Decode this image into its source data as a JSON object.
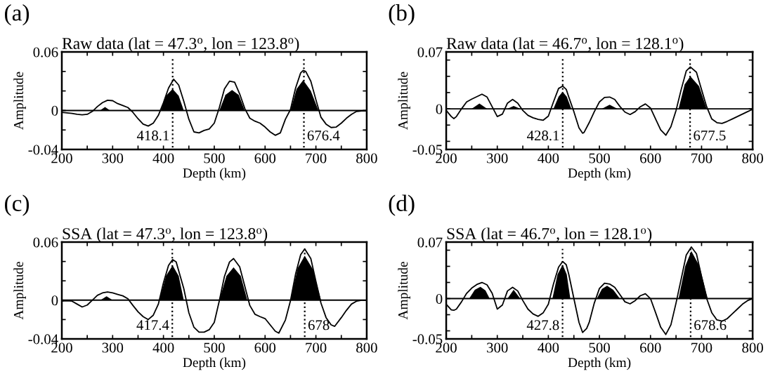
{
  "chart_data": [
    {
      "type": "line",
      "title": "Raw data (lat = 47.3$^{o}$, lon = 123.8$^{o}$)",
      "xlabel": "Depth (km)",
      "ylabel": "Amplitude",
      "annotations": [
        "(a)"
      ],
      "xlim": [
        200,
        800
      ],
      "ylim": [
        -0.04,
        0.06
      ],
      "xticks": [
        200,
        {
          "value": 250,
          "label": null
        },
        300,
        {
          "value": 350,
          "label": null
        },
        400,
        {
          "value": 450,
          "label": null
        },
        500,
        {
          "value": 550,
          "label": null
        },
        600,
        {
          "value": 650,
          "label": null
        },
        700,
        {
          "value": 750,
          "label": null
        },
        800
      ],
      "yticks": [
        {
          "value": -0.04,
          "label": "-0.04"
        },
        {
          "value": -0.02,
          "label": null
        },
        0,
        {
          "value": 0.02,
          "label": null
        },
        {
          "value": 0.04,
          "label": null
        },
        0.06
      ],
      "series": [
        {
          "type": "line",
          "color": "#000000",
          "x": [
            200,
            210,
            220,
            230,
            240,
            250,
            260,
            270,
            280,
            290,
            300,
            310,
            320,
            330,
            340,
            350,
            360,
            370,
            380,
            390,
            400,
            410,
            420,
            430,
            440,
            450,
            460,
            470,
            480,
            490,
            500,
            510,
            520,
            530,
            540,
            550,
            560,
            570,
            580,
            590,
            600,
            610,
            620,
            630,
            640,
            650,
            660,
            670,
            675,
            680,
            690,
            700,
            710,
            720,
            730,
            740,
            750,
            760,
            770,
            780,
            790,
            800
          ],
          "values": [
            -0.002,
            -0.0025,
            -0.003,
            -0.004,
            -0.0045,
            -0.004,
            -0.001,
            0.004,
            0.008,
            0.0105,
            0.01,
            0.007,
            0.005,
            0.003,
            -0.002,
            -0.0085,
            -0.014,
            -0.016,
            -0.013,
            -0.005,
            0.008,
            0.023,
            0.032,
            0.026,
            0.0095,
            -0.009,
            -0.022,
            -0.023,
            -0.0205,
            -0.019,
            -0.013,
            0.003,
            0.022,
            0.03,
            0.029,
            0.017,
            0.002,
            -0.008,
            -0.011,
            -0.013,
            -0.017,
            -0.022,
            -0.0255,
            -0.023,
            -0.009,
            0.001,
            0.023,
            0.0385,
            0.041,
            0.04,
            0.03,
            0.011,
            -0.007,
            -0.014,
            -0.0175,
            -0.017,
            -0.013,
            -0.008,
            -0.004,
            -0.001,
            -0.0005,
            -0.0005
          ]
        },
        {
          "type": "area",
          "color": "#000000",
          "x": [
            275,
            285,
            295,
            350,
            395,
            405,
            418,
            430,
            440,
            480,
            510,
            522,
            535,
            548,
            560,
            600,
            650,
            662,
            675,
            690,
            705
          ],
          "values": [
            0,
            0.0035,
            0,
            null,
            0,
            0.015,
            0.022,
            0.015,
            0,
            null,
            0,
            0.016,
            0.021,
            0.016,
            0,
            null,
            0,
            0.022,
            0.031,
            0.02,
            0
          ]
        }
      ],
      "ref_lines": [
        {
          "axis": "y",
          "value": 0,
          "color": "#000000",
          "line_style": "solid"
        },
        {
          "axis": "x",
          "value": 418.1,
          "label": "418.1",
          "color": "#000000",
          "line_style": "dotted"
        },
        {
          "axis": "x",
          "value": 676.4,
          "label": "676.4",
          "color": "#000000",
          "line_style": "dotted"
        }
      ]
    },
    {
      "type": "line",
      "title": "Raw data (lat = 46.7$^{o}$, lon = 128.1$^{o}$)",
      "xlabel": "Depth (km)",
      "ylabel": "Amplitude",
      "annotations": [
        "(b)"
      ],
      "xlim": [
        200,
        800
      ],
      "ylim": [
        -0.05,
        0.07
      ],
      "xticks": [
        200,
        {
          "value": 250,
          "label": null
        },
        300,
        {
          "value": 350,
          "label": null
        },
        400,
        {
          "value": 450,
          "label": null
        },
        500,
        {
          "value": 550,
          "label": null
        },
        600,
        {
          "value": 650,
          "label": null
        },
        700,
        {
          "value": 750,
          "label": null
        },
        800
      ],
      "yticks": [
        {
          "value": -0.05,
          "label": "-0.05"
        },
        {
          "value": -0.04,
          "label": null
        },
        {
          "value": -0.02,
          "label": null
        },
        0,
        {
          "value": 0.02,
          "label": null
        },
        {
          "value": 0.04,
          "label": null
        },
        {
          "value": 0.06,
          "label": null
        },
        0.07
      ],
      "series": [
        {
          "type": "line",
          "color": "#000000",
          "x": [
            200,
            210,
            215,
            220,
            230,
            240,
            250,
            260,
            270,
            280,
            290,
            300,
            310,
            320,
            330,
            340,
            350,
            360,
            370,
            380,
            390,
            400,
            410,
            420,
            428,
            435,
            440,
            450,
            460,
            467,
            470,
            480,
            490,
            500,
            510,
            520,
            530,
            540,
            550,
            560,
            570,
            580,
            590,
            600,
            610,
            620,
            630,
            640,
            650,
            660,
            670,
            678,
            690,
            700,
            710,
            720,
            730,
            740,
            750,
            760,
            770,
            780,
            790,
            800
          ],
          "values": [
            -0.002,
            -0.0095,
            -0.012,
            -0.0095,
            0,
            0.0085,
            0.012,
            0.015,
            0.018,
            0.0145,
            0.0025,
            -0.0095,
            -0.0065,
            0.007,
            0.0115,
            0.007,
            -0.002,
            -0.008,
            -0.011,
            -0.013,
            -0.014,
            -0.009,
            0.0085,
            0.025,
            0.028,
            0.024,
            0.0145,
            -0.0035,
            -0.0235,
            -0.03,
            -0.029,
            -0.017,
            -0.0035,
            0.0085,
            0.014,
            0.0145,
            0.0115,
            0.003,
            -0.004,
            -0.007,
            -0.0035,
            0.0025,
            0.006,
            0.001,
            -0.0125,
            -0.026,
            -0.0325,
            -0.022,
            -0.002,
            0.0235,
            0.0465,
            0.0515,
            0.045,
            0.0235,
            0.0025,
            -0.0125,
            -0.017,
            -0.018,
            -0.0155,
            -0.0125,
            -0.0095,
            -0.0065,
            -0.0035,
            -0.0005
          ]
        },
        {
          "type": "area",
          "color": "#000000",
          "x": [
            250,
            265,
            280,
            300,
            320,
            332,
            345,
            380,
            410,
            420,
            428,
            436,
            445,
            480,
            505,
            520,
            535,
            600,
            655,
            667,
            678,
            695,
            710
          ],
          "values": [
            0,
            0.0065,
            0,
            null,
            0,
            0.0035,
            0,
            null,
            0,
            0.015,
            0.021,
            0.015,
            0,
            null,
            0,
            0.005,
            0,
            null,
            0,
            0.03,
            0.04,
            0.028,
            0
          ]
        }
      ],
      "ref_lines": [
        {
          "axis": "y",
          "value": 0,
          "color": "#000000",
          "line_style": "solid"
        },
        {
          "axis": "x",
          "value": 428.1,
          "label": "428.1",
          "color": "#000000",
          "line_style": "dotted"
        },
        {
          "axis": "x",
          "value": 677.5,
          "label": "677.5",
          "color": "#000000",
          "line_style": "dotted"
        }
      ]
    },
    {
      "type": "line",
      "title": "SSA (lat = 47.3$^{o}$, lon = 123.8$^{o}$)",
      "xlabel": "Depth (km)",
      "ylabel": "Amplitude",
      "annotations": [
        "(c)"
      ],
      "xlim": [
        200,
        800
      ],
      "ylim": [
        -0.04,
        0.06
      ],
      "xticks": [
        200,
        {
          "value": 250,
          "label": null
        },
        300,
        {
          "value": 350,
          "label": null
        },
        400,
        {
          "value": 450,
          "label": null
        },
        500,
        {
          "value": 550,
          "label": null
        },
        600,
        {
          "value": 650,
          "label": null
        },
        700,
        {
          "value": 750,
          "label": null
        },
        800
      ],
      "yticks": [
        {
          "value": -0.04,
          "label": "-0.04"
        },
        {
          "value": -0.02,
          "label": null
        },
        0,
        {
          "value": 0.02,
          "label": null
        },
        {
          "value": 0.04,
          "label": null
        },
        0.06
      ],
      "series": [
        {
          "type": "line",
          "color": "#000000",
          "x": [
            200,
            210,
            220,
            230,
            240,
            250,
            260,
            270,
            280,
            290,
            300,
            310,
            320,
            330,
            340,
            350,
            360,
            370,
            380,
            390,
            400,
            410,
            418,
            425,
            440,
            450,
            460,
            470,
            480,
            490,
            500,
            510,
            520,
            530,
            538,
            550,
            560,
            570,
            580,
            590,
            600,
            610,
            620,
            627,
            640,
            650,
            660,
            670,
            678,
            690,
            700,
            710,
            720,
            730,
            737,
            750,
            760,
            770,
            780,
            790,
            800
          ],
          "values": [
            -0.001,
            -0.0005,
            -0.001,
            -0.004,
            -0.007,
            -0.005,
            0,
            0.005,
            0.0075,
            0.0085,
            0.0075,
            0.006,
            0.0045,
            0.0015,
            -0.0055,
            -0.012,
            -0.017,
            -0.02,
            -0.0155,
            -0.004,
            0.018,
            0.036,
            0.042,
            0.0395,
            0.012,
            -0.013,
            -0.028,
            -0.033,
            -0.033,
            -0.0305,
            -0.023,
            -0.0005,
            0.0245,
            0.0395,
            0.043,
            0.0345,
            0.0145,
            -0.0055,
            -0.0145,
            -0.017,
            -0.019,
            -0.0255,
            -0.032,
            -0.034,
            -0.0205,
            -0.0005,
            0.027,
            0.047,
            0.053,
            0.043,
            0.0195,
            -0.003,
            -0.018,
            -0.0255,
            -0.027,
            -0.018,
            -0.0105,
            -0.004,
            -0.001,
            0,
            0
          ]
        },
        {
          "type": "area",
          "color": "#000000",
          "x": [
            276,
            288,
            300,
            350,
            392,
            405,
            418,
            430,
            440,
            480,
            510,
            524,
            538,
            552,
            565,
            600,
            650,
            664,
            678,
            694,
            710
          ],
          "values": [
            0,
            0.004,
            0,
            null,
            0,
            0.025,
            0.036,
            0.025,
            0,
            null,
            0,
            0.025,
            0.034,
            0.025,
            0,
            null,
            0,
            0.033,
            0.046,
            0.032,
            0
          ]
        }
      ],
      "ref_lines": [
        {
          "axis": "y",
          "value": 0,
          "color": "#000000",
          "line_style": "solid"
        },
        {
          "axis": "x",
          "value": 417.4,
          "label": "417.4",
          "color": "#000000",
          "line_style": "dotted"
        },
        {
          "axis": "x",
          "value": 678,
          "label": "678",
          "color": "#000000",
          "line_style": "dotted"
        }
      ]
    },
    {
      "type": "line",
      "title": "SSA (lat = 46.7$^{o}$, lon = 128.1$^{o}$)",
      "xlabel": "Depth (km)",
      "ylabel": "Amplitude",
      "annotations": [
        "(d)"
      ],
      "xlim": [
        200,
        800
      ],
      "ylim": [
        -0.05,
        0.07
      ],
      "xticks": [
        200,
        {
          "value": 250,
          "label": null
        },
        300,
        {
          "value": 350,
          "label": null
        },
        400,
        {
          "value": 450,
          "label": null
        },
        500,
        {
          "value": 550,
          "label": null
        },
        600,
        {
          "value": 650,
          "label": null
        },
        700,
        {
          "value": 750,
          "label": null
        },
        800
      ],
      "yticks": [
        {
          "value": -0.05,
          "label": "-0.05"
        },
        {
          "value": -0.04,
          "label": null
        },
        {
          "value": -0.02,
          "label": null
        },
        0,
        {
          "value": 0.02,
          "label": null
        },
        {
          "value": 0.04,
          "label": null
        },
        {
          "value": 0.06,
          "label": null
        },
        0.07
      ],
      "series": [
        {
          "type": "line",
          "color": "#000000",
          "x": [
            200,
            210,
            215,
            220,
            230,
            240,
            250,
            260,
            270,
            280,
            290,
            300,
            310,
            320,
            330,
            340,
            350,
            360,
            370,
            380,
            390,
            400,
            410,
            420,
            428,
            435,
            440,
            450,
            460,
            467,
            475,
            480,
            490,
            500,
            510,
            520,
            530,
            540,
            550,
            560,
            570,
            580,
            590,
            600,
            610,
            620,
            630,
            640,
            650,
            660,
            670,
            680,
            690,
            700,
            710,
            720,
            730,
            740,
            750,
            760,
            770,
            780,
            790,
            800
          ],
          "values": [
            -0.007,
            -0.014,
            -0.0145,
            -0.013,
            -0.004,
            0.0065,
            0.013,
            0.0175,
            0.02,
            0.017,
            0.0065,
            -0.013,
            -0.008,
            0.0095,
            0.014,
            0.0095,
            -0.0025,
            -0.013,
            -0.019,
            -0.022,
            -0.0175,
            -0.007,
            0.018,
            0.039,
            0.046,
            0.042,
            0.03,
            0,
            -0.0295,
            -0.042,
            -0.037,
            -0.0295,
            -0.0055,
            0.0125,
            0.019,
            0.018,
            0.014,
            0.005,
            -0.004,
            -0.0065,
            -0.0025,
            0.0035,
            0.006,
            0,
            -0.0175,
            -0.0355,
            -0.0445,
            -0.0325,
            -0.0055,
            0.024,
            0.054,
            0.064,
            0.0555,
            0.027,
            0,
            -0.0175,
            -0.0265,
            -0.028,
            -0.025,
            -0.019,
            -0.013,
            -0.007,
            -0.0025,
            0
          ]
        },
        {
          "type": "area",
          "color": "#000000",
          "x": [
            245,
            256,
            267,
            277,
            285,
            300,
            320,
            332,
            345,
            380,
            408,
            418,
            428,
            436,
            443,
            470,
            495,
            505,
            515,
            527,
            540,
            600,
            655,
            668,
            680,
            696,
            712
          ],
          "values": [
            0,
            0.011,
            0.0145,
            0.01,
            0,
            null,
            0,
            0.011,
            0,
            null,
            0,
            0.03,
            0.042,
            0.03,
            0,
            null,
            0,
            0.012,
            0.016,
            0.011,
            0,
            null,
            0,
            0.04,
            0.059,
            0.04,
            0
          ]
        }
      ],
      "ref_lines": [
        {
          "axis": "y",
          "value": 0,
          "color": "#000000",
          "line_style": "solid"
        },
        {
          "axis": "x",
          "value": 427.8,
          "label": "427.8",
          "color": "#000000",
          "line_style": "dotted"
        },
        {
          "axis": "x",
          "value": 678.6,
          "label": "678.6",
          "color": "#000000",
          "line_style": "dotted"
        }
      ]
    }
  ]
}
